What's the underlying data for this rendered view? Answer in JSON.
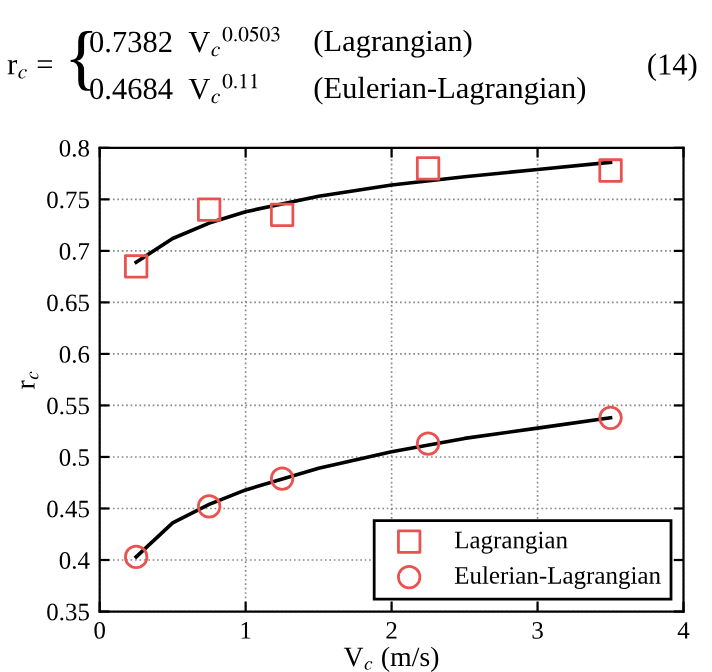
{
  "chart_data": {
    "type": "scatter",
    "annotations": [
      "r$_{c}$ =",
      "{",
      "0.7382  V$_{c}$$^{0.0503}$",
      "(Lagrangian)",
      "0.4684  V$_{c}$$^{0.11}$",
      "(Eulerian-Lagrangian)",
      "(14)"
    ],
    "xlabel": "V$_{c}$ (m/s)",
    "ylabel": "r$_{c}$",
    "xlim": [
      0,
      4
    ],
    "xticks": [
      0,
      1,
      2,
      3,
      4
    ],
    "ylim": [
      0.35,
      0.8
    ],
    "yticks": [
      0.35,
      0.4,
      0.45,
      0.5,
      0.55,
      0.6,
      0.65,
      0.7,
      0.75,
      0.8
    ],
    "grid": true,
    "legend": "bottom right",
    "series": [
      {
        "name": "Lagrangian",
        "marker": "square",
        "color": "#e8534f",
        "x": [
          0.25,
          0.75,
          1.25,
          2.25,
          3.5
        ],
        "values": [
          0.685,
          0.74,
          0.735,
          0.78,
          0.778
        ]
      },
      {
        "name": "Eulerian-Lagrangian",
        "marker": "circle",
        "color": "#e8534f",
        "x": [
          0.25,
          0.75,
          1.25,
          2.25,
          3.5
        ],
        "values": [
          0.403,
          0.452,
          0.479,
          0.513,
          0.538
        ]
      },
      {
        "type": "line",
        "line_style": "solid",
        "marker": "none",
        "color": "#000000",
        "x": [
          0.25,
          0.5,
          0.75,
          1.0,
          1.5,
          2.0,
          2.5,
          3.0,
          3.5
        ],
        "values": [
          0.689,
          0.712,
          0.727,
          0.738,
          0.753,
          0.764,
          0.772,
          0.779,
          0.786
        ]
      },
      {
        "type": "line",
        "line_style": "solid",
        "marker": "none",
        "color": "#000000",
        "x": [
          0.25,
          0.5,
          0.75,
          1.0,
          1.5,
          2.0,
          2.5,
          3.0,
          3.5
        ],
        "values": [
          0.403,
          0.436,
          0.454,
          0.468,
          0.489,
          0.505,
          0.518,
          0.528,
          0.538
        ]
      }
    ]
  }
}
